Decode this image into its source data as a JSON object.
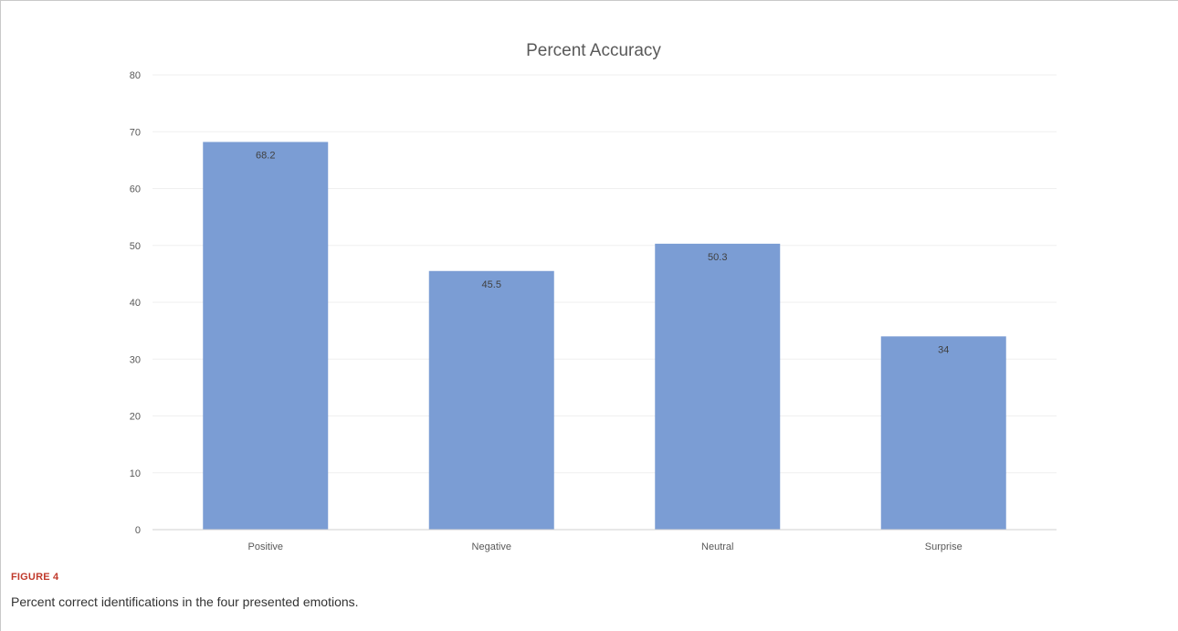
{
  "chart_data": {
    "type": "bar",
    "title": "Percent Accuracy",
    "categories": [
      "Positive",
      "Negative",
      "Neutral",
      "Surprise"
    ],
    "values": [
      68.2,
      45.5,
      50.3,
      34
    ],
    "data_labels": [
      "68.2",
      "45.5",
      "50.3",
      "34"
    ],
    "ylim": [
      0,
      80
    ],
    "yticks": [
      0,
      10,
      20,
      30,
      40,
      50,
      60,
      70,
      80
    ],
    "xlabel": "",
    "ylabel": "",
    "grid": true,
    "legend": "none",
    "bar_color": "#7b9dd4"
  },
  "figure": {
    "label": "FIGURE 4",
    "caption": "Percent correct identifications in the four presented emotions."
  }
}
